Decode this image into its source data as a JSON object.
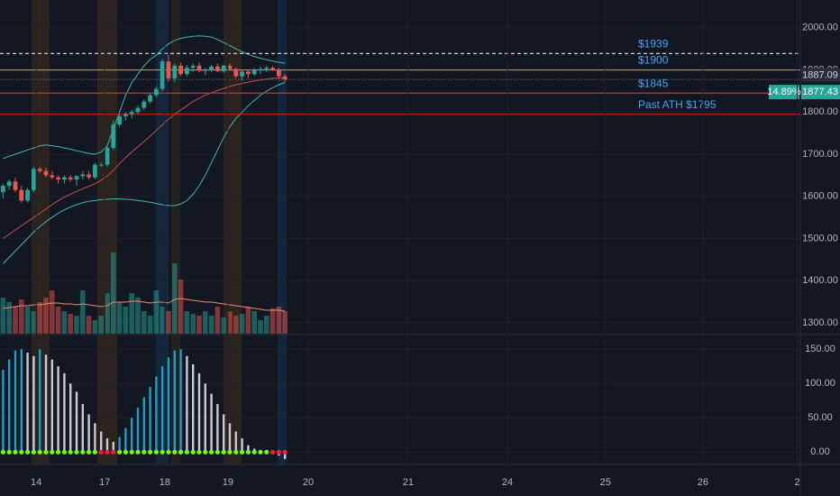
{
  "chart_data": [
    {
      "type": "candlestick",
      "xlim": [
        -0.5,
        130.1
      ],
      "ylim": [
        1274,
        2066
      ],
      "yticks": [
        {
          "value": 1300,
          "label": "1300.00"
        },
        {
          "value": 1400,
          "label": "1400.00"
        },
        {
          "value": 1500,
          "label": "1500.00"
        },
        {
          "value": 1600,
          "label": "1600.00"
        },
        {
          "value": 1700,
          "label": "1700.00"
        },
        {
          "value": 1800,
          "label": "1800.00"
        },
        {
          "value": 1900,
          "label": "1900.00"
        },
        {
          "value": 2000,
          "label": "2000.00"
        }
      ],
      "grid": true,
      "up_color": "#26a69a",
      "down_color": "#ef5350",
      "open": [
        1610,
        1625,
        1635,
        1615,
        1590,
        1615,
        1665,
        1660,
        1650,
        1645,
        1640,
        1645,
        1640,
        1648,
        1652,
        1645,
        1675,
        1675,
        1715,
        1770,
        1790,
        1795,
        1800,
        1810,
        1825,
        1840,
        1855,
        1920,
        1880,
        1910,
        1890,
        1905,
        1910,
        1898,
        1900,
        1908,
        1897,
        1910,
        1902,
        1885,
        1896,
        1890,
        1900,
        1902,
        1905,
        1900,
        1885
      ],
      "high": [
        1630,
        1640,
        1645,
        1625,
        1620,
        1670,
        1670,
        1668,
        1660,
        1650,
        1650,
        1650,
        1650,
        1660,
        1660,
        1680,
        1680,
        1720,
        1780,
        1795,
        1800,
        1805,
        1815,
        1830,
        1845,
        1860,
        1925,
        1935,
        1915,
        1918,
        1912,
        1915,
        1918,
        1905,
        1912,
        1915,
        1912,
        1915,
        1906,
        1900,
        1902,
        1905,
        1908,
        1910,
        1910,
        1905,
        1890
      ],
      "low": [
        1595,
        1615,
        1610,
        1585,
        1585,
        1610,
        1655,
        1645,
        1640,
        1630,
        1630,
        1635,
        1625,
        1640,
        1640,
        1640,
        1670,
        1670,
        1710,
        1765,
        1780,
        1785,
        1795,
        1805,
        1820,
        1835,
        1850,
        1872,
        1870,
        1885,
        1885,
        1895,
        1895,
        1888,
        1895,
        1895,
        1893,
        1900,
        1880,
        1875,
        1880,
        1886,
        1890,
        1895,
        1898,
        1880,
        1872
      ],
      "close": [
        1625,
        1635,
        1615,
        1590,
        1615,
        1665,
        1660,
        1650,
        1645,
        1640,
        1645,
        1640,
        1648,
        1652,
        1645,
        1675,
        1675,
        1715,
        1770,
        1790,
        1795,
        1800,
        1810,
        1825,
        1840,
        1855,
        1920,
        1880,
        1910,
        1890,
        1905,
        1910,
        1898,
        1900,
        1908,
        1897,
        1910,
        1902,
        1885,
        1896,
        1890,
        1900,
        1902,
        1905,
        1900,
        1885,
        1877.43
      ],
      "volume": [
        40,
        35,
        30,
        38,
        30,
        25,
        35,
        40,
        48,
        30,
        25,
        22,
        20,
        48,
        20,
        15,
        20,
        45,
        90,
        35,
        30,
        45,
        40,
        25,
        20,
        48,
        30,
        25,
        78,
        60,
        25,
        22,
        20,
        25,
        20,
        30,
        18,
        25,
        20,
        22,
        30,
        25,
        15,
        20,
        28,
        30,
        25
      ],
      "volume_ma": [
        28,
        29,
        30,
        31,
        31,
        32,
        32,
        33,
        34,
        34,
        33,
        33,
        32,
        33,
        32,
        31,
        30,
        31,
        35,
        35,
        35,
        36,
        36,
        35,
        34,
        35,
        35,
        34,
        38,
        39,
        38,
        37,
        36,
        35,
        35,
        34,
        33,
        32,
        31,
        30,
        29,
        28,
        27,
        26,
        26,
        26,
        25
      ],
      "volume_ma_color": "#f08a6a",
      "bb_color": "#3fb6b0",
      "basis_color": "#c0504d",
      "bb_upper": [
        1690,
        1695,
        1700,
        1705,
        1710,
        1715,
        1720,
        1722,
        1720,
        1718,
        1715,
        1712,
        1708,
        1705,
        1702,
        1700,
        1705,
        1720,
        1760,
        1800,
        1840,
        1870,
        1890,
        1910,
        1925,
        1935,
        1950,
        1962,
        1970,
        1975,
        1978,
        1980,
        1981,
        1980,
        1978,
        1972,
        1965,
        1958,
        1950,
        1943,
        1937,
        1932,
        1928,
        1924,
        1921,
        1918,
        1916
      ],
      "bb_lower": [
        1440,
        1455,
        1470,
        1485,
        1500,
        1515,
        1528,
        1540,
        1550,
        1560,
        1568,
        1575,
        1580,
        1585,
        1588,
        1590,
        1592,
        1593,
        1594,
        1594,
        1593,
        1592,
        1590,
        1588,
        1586,
        1583,
        1580,
        1578,
        1578,
        1582,
        1590,
        1605,
        1625,
        1650,
        1680,
        1710,
        1740,
        1765,
        1785,
        1800,
        1815,
        1828,
        1840,
        1850,
        1858,
        1865,
        1870
      ],
      "bb_basis": [
        1500,
        1510,
        1520,
        1530,
        1540,
        1550,
        1560,
        1570,
        1580,
        1590,
        1598,
        1605,
        1612,
        1618,
        1624,
        1630,
        1638,
        1648,
        1662,
        1678,
        1692,
        1705,
        1718,
        1730,
        1743,
        1756,
        1770,
        1783,
        1795,
        1805,
        1815,
        1825,
        1833,
        1840,
        1846,
        1851,
        1856,
        1861,
        1865,
        1868,
        1871,
        1874,
        1876,
        1878,
        1880,
        1881,
        1882
      ],
      "levels": [
        {
          "label": "$1939",
          "value": 1939,
          "color": "#e0e3eb",
          "dashed": true
        },
        {
          "label": "$1900",
          "value": 1900,
          "color": "#a5a23a",
          "dashed": false
        },
        {
          "label": "$1845",
          "value": 1845,
          "color": "#d32f2f",
          "dashed": false
        },
        {
          "label": "Past ATH $1795",
          "value": 1795,
          "color": "#b71c1c",
          "dashed": false
        }
      ],
      "level_label_color": "#42a5f5",
      "ma_price": 1887.09,
      "last_price": 1877.43,
      "change": {
        "value": 14.89,
        "label": "14.89%"
      }
    },
    {
      "type": "bar",
      "xlim": [
        -0.5,
        130.1
      ],
      "ylim": [
        -18,
        170
      ],
      "yticks": [
        {
          "value": 0,
          "label": "0.00"
        },
        {
          "value": 50,
          "label": "50.00"
        },
        {
          "value": 100,
          "label": "100.00"
        },
        {
          "value": 150,
          "label": "150.00"
        }
      ],
      "xticks": [
        {
          "value": 5.4,
          "label": "14"
        },
        {
          "value": 16.6,
          "label": "17"
        },
        {
          "value": 26.4,
          "label": "18"
        },
        {
          "value": 36.7,
          "label": "19"
        },
        {
          "value": 49.8,
          "label": "20"
        },
        {
          "value": 66.1,
          "label": "21"
        },
        {
          "value": 82.3,
          "label": "24"
        },
        {
          "value": 98.3,
          "label": "25"
        },
        {
          "value": 114.2,
          "label": "26"
        },
        {
          "value": 129.6,
          "label": "2"
        }
      ],
      "rising_color": "#1e9ec4",
      "falling_color": "#c9cbd1",
      "values": [
        120,
        135,
        148,
        150,
        145,
        140,
        150,
        142,
        135,
        125,
        115,
        100,
        88,
        70,
        55,
        42,
        30,
        20,
        15,
        22,
        35,
        50,
        65,
        80,
        95,
        110,
        125,
        138,
        148,
        150,
        140,
        128,
        115,
        100,
        85,
        70,
        55,
        42,
        30,
        20,
        10,
        5,
        3,
        2,
        -3,
        -5,
        -10
      ],
      "squeeze": [
        false,
        false,
        false,
        false,
        false,
        false,
        false,
        false,
        false,
        false,
        false,
        false,
        false,
        false,
        false,
        false,
        true,
        true,
        true,
        false,
        false,
        false,
        false,
        false,
        false,
        false,
        false,
        false,
        false,
        false,
        false,
        false,
        false,
        false,
        false,
        false,
        false,
        false,
        false,
        false,
        false,
        false,
        false,
        false,
        true,
        true,
        true
      ],
      "squeeze_off_color": "#76ff03",
      "squeeze_on_color": "#ff1744"
    }
  ]
}
